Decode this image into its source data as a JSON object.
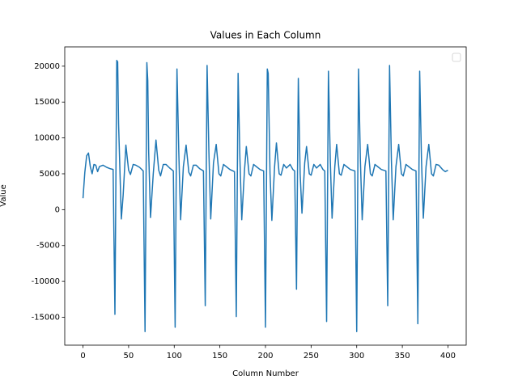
{
  "chart_data": {
    "type": "line",
    "title": "Values in Each Column",
    "x_label": "Column Number",
    "y_label": "Value",
    "x": [
      0,
      2,
      4,
      6,
      8,
      10,
      12,
      14,
      16,
      18,
      22,
      26,
      30,
      33,
      35,
      37,
      38,
      39,
      42,
      44,
      47,
      50,
      52,
      55,
      58,
      62,
      66,
      68,
      70,
      71,
      72,
      74,
      77,
      80,
      83,
      85,
      88,
      91,
      95,
      99,
      101,
      103,
      105,
      107,
      110,
      113,
      116,
      118,
      121,
      124,
      128,
      132,
      134,
      136,
      138,
      140,
      143,
      146,
      149,
      151,
      154,
      157,
      161,
      166,
      168,
      170,
      172,
      174,
      177,
      179,
      182,
      184,
      187,
      190,
      194,
      198,
      200,
      202,
      203,
      205,
      207,
      210,
      212,
      215,
      217,
      220,
      223,
      227,
      230,
      232,
      234,
      236,
      238,
      240,
      243,
      245,
      248,
      250,
      253,
      256,
      260,
      263,
      265,
      267,
      269,
      271,
      273,
      276,
      278,
      281,
      283,
      286,
      289,
      293,
      298,
      300,
      302,
      304,
      306,
      309,
      312,
      315,
      317,
      320,
      323,
      327,
      332,
      334,
      336,
      338,
      340,
      343,
      346,
      349,
      351,
      354,
      357,
      361,
      365,
      367,
      369,
      371,
      373,
      376,
      379,
      382,
      384,
      387,
      390,
      394,
      397,
      400
    ],
    "series": [
      {
        "color": "#1f77b4",
        "values": [
          1600,
          5200,
          7500,
          7900,
          6000,
          5000,
          6300,
          6200,
          5300,
          6000,
          6200,
          5900,
          5700,
          5600,
          -14600,
          20800,
          20600,
          12000,
          -1300,
          2000,
          9000,
          5500,
          4900,
          6300,
          6200,
          5900,
          5400,
          -17000,
          20500,
          18000,
          8000,
          -1100,
          5000,
          9700,
          5500,
          4700,
          6300,
          6300,
          5800,
          5400,
          -16400,
          19600,
          8000,
          -1400,
          6000,
          9000,
          5200,
          4700,
          6200,
          6200,
          5700,
          5400,
          -13400,
          20100,
          8000,
          -1300,
          6500,
          9100,
          5000,
          4700,
          6300,
          6000,
          5600,
          5300,
          -14900,
          19000,
          7000,
          -1400,
          5500,
          8800,
          5000,
          4700,
          6300,
          6000,
          5600,
          5400,
          -16400,
          19600,
          19000,
          5000,
          -1500,
          6000,
          9300,
          5000,
          4800,
          6300,
          5800,
          6300,
          5600,
          5400,
          -11100,
          18300,
          5000,
          -500,
          6500,
          8800,
          5000,
          4800,
          6300,
          5800,
          6300,
          5600,
          5400,
          -15600,
          19300,
          7000,
          -1200,
          6000,
          9100,
          5000,
          4800,
          6300,
          6000,
          5600,
          5400,
          -17000,
          19600,
          7000,
          -1400,
          6000,
          9100,
          5000,
          4700,
          6300,
          6000,
          5600,
          5400,
          -13400,
          20100,
          7000,
          -1400,
          6000,
          9100,
          5000,
          4700,
          6300,
          6000,
          5600,
          5400,
          -15900,
          19300,
          7000,
          -1200,
          6000,
          9100,
          5000,
          4700,
          6300,
          6200,
          5600,
          5300,
          5500
        ]
      }
    ],
    "xlim": [
      -20,
      420
    ],
    "ylim": [
      -18890,
      22690
    ],
    "xticks": [
      0,
      50,
      100,
      150,
      200,
      250,
      300,
      350,
      400
    ],
    "yticks": [
      -15000,
      -10000,
      -5000,
      0,
      5000,
      10000,
      15000,
      20000
    ],
    "legend": "upper right"
  }
}
